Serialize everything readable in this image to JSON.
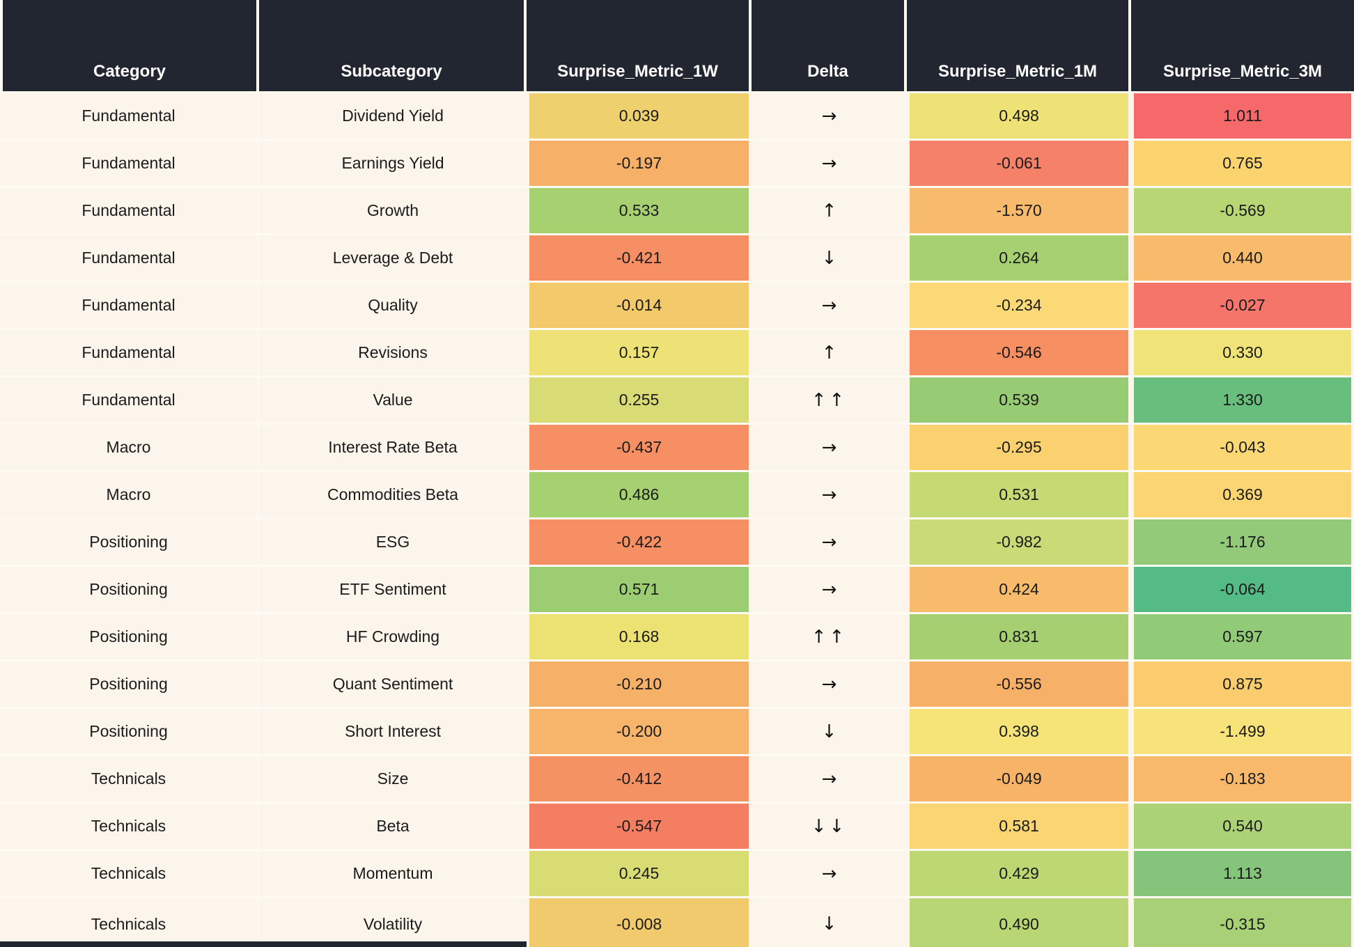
{
  "colors": {
    "header_bg": "#212631",
    "header_text": "#ffffff",
    "body_bg": "#fbf5eb",
    "separator": "#fdfaf2",
    "cell_text": "#1b1b1b"
  },
  "chart_data": {
    "type": "heatmap",
    "title": "Factor surprise metrics table with red-yellow-green conditional formatting",
    "columns": [
      "Category",
      "Subcategory",
      "Surprise_Metric_1W",
      "Delta",
      "Surprise_Metric_1M",
      "Surprise_Metric_3M"
    ],
    "rows": [
      {
        "category": "Fundamental",
        "subcategory": "Dividend Yield",
        "m1w": "0.039",
        "m1w_color": "#eed06f",
        "delta": "→",
        "m1m": "0.498",
        "m1m_color": "#eee276",
        "m3m": "1.011",
        "m3m_color": "#f5696a"
      },
      {
        "category": "Fundamental",
        "subcategory": "Earnings Yield",
        "m1w": "-0.197",
        "m1w_color": "#f6b068",
        "delta": "→",
        "m1m": "-0.061",
        "m1m_color": "#f58168",
        "m3m": "0.765",
        "m3m_color": "#fbd470"
      },
      {
        "category": "Fundamental",
        "subcategory": "Growth",
        "m1w": "0.533",
        "m1w_color": "#a7d170",
        "delta": "↑",
        "m1m": "-1.570",
        "m1m_color": "#f8bb6d",
        "m3m": "-0.569",
        "m3m_color": "#b9d675"
      },
      {
        "category": "Fundamental",
        "subcategory": "Leverage & Debt",
        "m1w": "-0.421",
        "m1w_color": "#f69064",
        "delta": "↓",
        "m1m": "0.264",
        "m1m_color": "#a7d170",
        "m3m": "0.440",
        "m3m_color": "#f8ba6b"
      },
      {
        "category": "Fundamental",
        "subcategory": "Quality",
        "m1w": "-0.014",
        "m1w_color": "#f2ca6c",
        "delta": "→",
        "m1m": "-0.234",
        "m1m_color": "#fbd977",
        "m3m": "-0.027",
        "m3m_color": "#f5756b"
      },
      {
        "category": "Fundamental",
        "subcategory": "Revisions",
        "m1w": "0.157",
        "m1w_color": "#eee276",
        "delta": "↑",
        "m1m": "-0.546",
        "m1m_color": "#f69062",
        "m3m": "0.330",
        "m3m_color": "#f0e377"
      },
      {
        "category": "Fundamental",
        "subcategory": "Value",
        "m1w": "0.255",
        "m1w_color": "#d9dc74",
        "delta": "↑↑",
        "m1m": "0.539",
        "m1m_color": "#98cc74",
        "m3m": "1.330",
        "m3m_color": "#68be7c"
      },
      {
        "category": "Macro",
        "subcategory": "Interest Rate Beta",
        "m1w": "-0.437",
        "m1w_color": "#f69064",
        "delta": "→",
        "m1m": "-0.295",
        "m1m_color": "#fad16e",
        "m3m": "-0.043",
        "m3m_color": "#fbd873"
      },
      {
        "category": "Macro",
        "subcategory": "Commodities Beta",
        "m1w": "0.486",
        "m1w_color": "#a6d170",
        "delta": "→",
        "m1m": "0.531",
        "m1m_color": "#c6da73",
        "m3m": "0.369",
        "m3m_color": "#fbd572"
      },
      {
        "category": "Positioning",
        "subcategory": "ESG",
        "m1w": "-0.422",
        "m1w_color": "#f69064",
        "delta": "→",
        "m1m": "-0.982",
        "m1m_color": "#c9da76",
        "m3m": "-1.176",
        "m3m_color": "#92ca79"
      },
      {
        "category": "Positioning",
        "subcategory": "ETF Sentiment",
        "m1w": "0.571",
        "m1w_color": "#9ccd72",
        "delta": "→",
        "m1m": "0.424",
        "m1m_color": "#f8bb6c",
        "m3m": "-0.064",
        "m3m_color": "#54ba86"
      },
      {
        "category": "Positioning",
        "subcategory": "HF Crowding",
        "m1w": "0.168",
        "m1w_color": "#ece274",
        "delta": "↑↑",
        "m1m": "0.831",
        "m1m_color": "#a5cf70",
        "m3m": "0.597",
        "m3m_color": "#92cb78"
      },
      {
        "category": "Positioning",
        "subcategory": "Quant Sentiment",
        "m1w": "-0.210",
        "m1w_color": "#f6b169",
        "delta": "→",
        "m1m": "-0.556",
        "m1m_color": "#f7b067",
        "m3m": "0.875",
        "m3m_color": "#fbcc6e"
      },
      {
        "category": "Positioning",
        "subcategory": "Short Interest",
        "m1w": "-0.200",
        "m1w_color": "#f7b56c",
        "delta": "↓",
        "m1m": "0.398",
        "m1m_color": "#f6e479",
        "m3m": "-1.499",
        "m3m_color": "#f8e37a"
      },
      {
        "category": "Technicals",
        "subcategory": "Size",
        "m1w": "-0.412",
        "m1w_color": "#f59264",
        "delta": "→",
        "m1m": "-0.049",
        "m1m_color": "#f7b468",
        "m3m": "-0.183",
        "m3m_color": "#f9b96b"
      },
      {
        "category": "Technicals",
        "subcategory": "Beta",
        "m1w": "-0.547",
        "m1w_color": "#f47e62",
        "delta": "↓↓",
        "m1m": "0.581",
        "m1m_color": "#fbd572",
        "m3m": "0.540",
        "m3m_color": "#acd277"
      },
      {
        "category": "Technicals",
        "subcategory": "Momentum",
        "m1w": "0.245",
        "m1w_color": "#d9dc73",
        "delta": "→",
        "m1m": "0.429",
        "m1m_color": "#bdd873",
        "m3m": "1.113",
        "m3m_color": "#84c57b"
      },
      {
        "category": "Technicals",
        "subcategory": "Volatility",
        "m1w": "-0.008",
        "m1w_color": "#f0ca6c",
        "delta": "↓",
        "m1m": "0.490",
        "m1m_color": "#b9d675",
        "m3m": "-0.315",
        "m3m_color": "#a7d077"
      }
    ]
  }
}
